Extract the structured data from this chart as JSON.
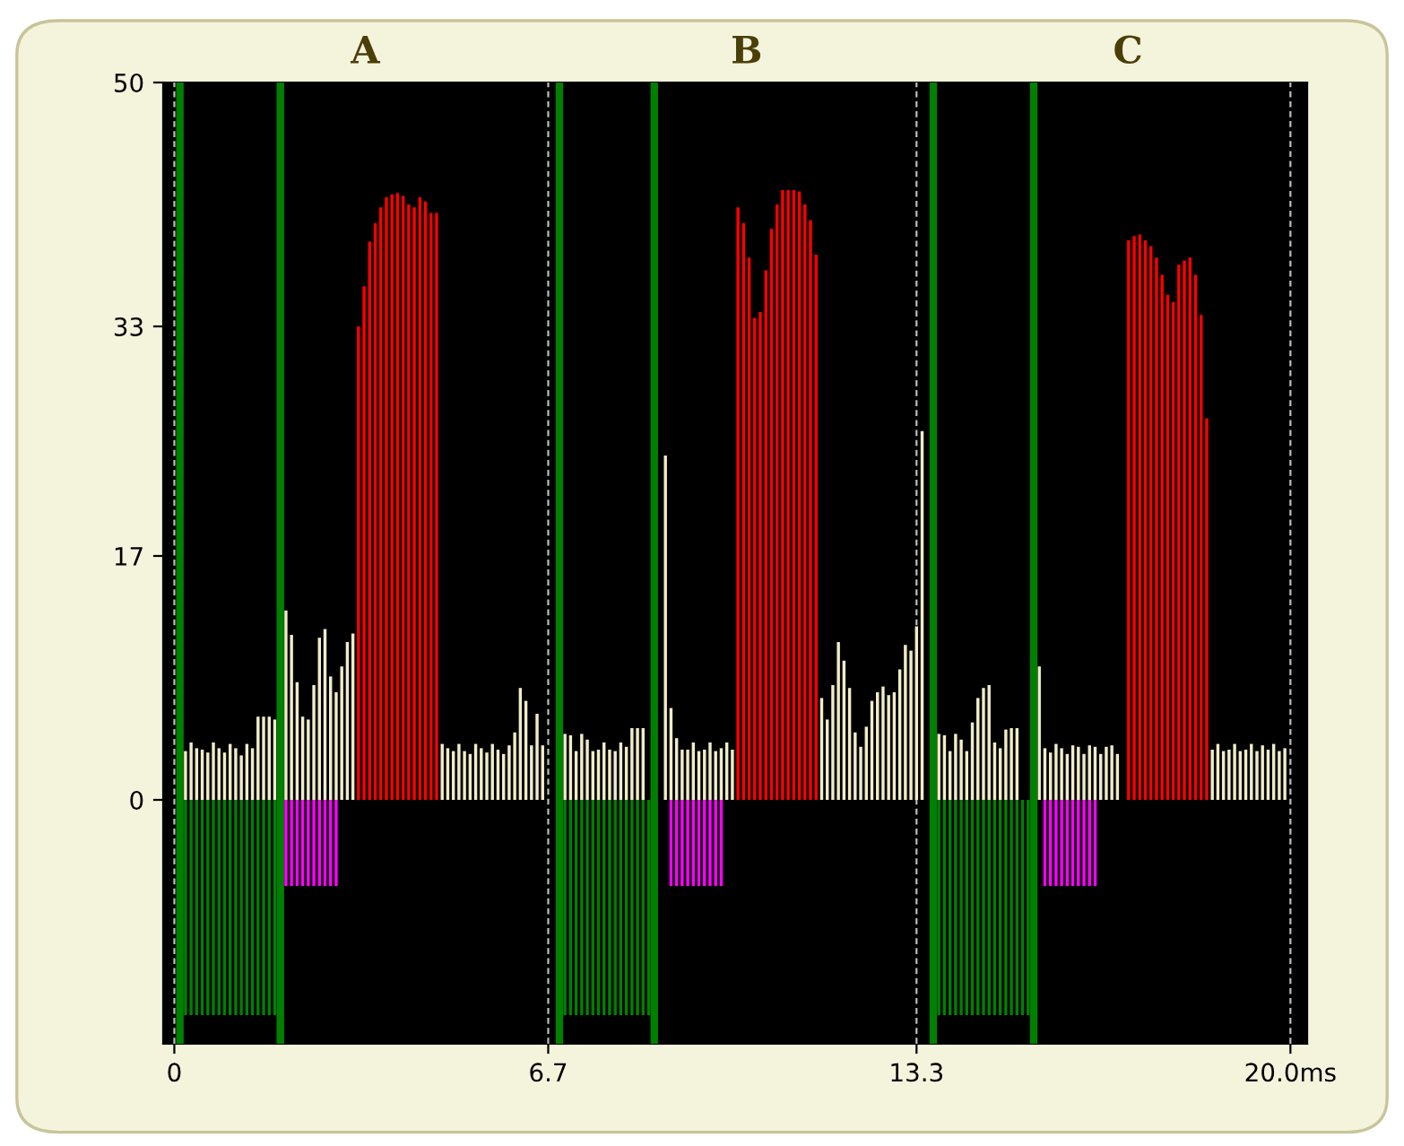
{
  "chart_data": {
    "type": "bar",
    "xlim": [
      -0.2,
      20.3
    ],
    "ylim": [
      -17,
      50
    ],
    "xticks": [
      0,
      6.7,
      13.3,
      {
        "value": 20.0,
        "label": "20.0ms"
      }
    ],
    "yticks": [
      50,
      33,
      17,
      0
    ],
    "grid": "x",
    "legend": false,
    "annotations": [
      "A",
      "B",
      "C"
    ],
    "ref_lines": [
      {
        "axis": "x",
        "value": 0.1,
        "label": null,
        "color": "#008000"
      },
      {
        "axis": "x",
        "value": 1.9,
        "label": null,
        "color": "#008000"
      },
      {
        "axis": "x",
        "value": 6.9,
        "label": null,
        "color": "#008000"
      },
      {
        "axis": "x",
        "value": 8.6,
        "label": null,
        "color": "#008000"
      },
      {
        "axis": "x",
        "value": 13.6,
        "label": null,
        "color": "#008000"
      },
      {
        "axis": "x",
        "value": 15.4,
        "label": null,
        "color": "#008000"
      }
    ],
    "series": [
      {
        "color": "#f0ecc8",
        "x": [
          0.2,
          0.3,
          0.4,
          0.5,
          0.6,
          0.7,
          0.8,
          0.9,
          1.0,
          1.1,
          1.2,
          1.3,
          1.4,
          1.5,
          1.6,
          1.7,
          1.8,
          2.0,
          2.1,
          2.2,
          2.3,
          2.4,
          2.5,
          2.6,
          2.7,
          2.8,
          2.9,
          3.0,
          3.1,
          3.2,
          4.8,
          4.9,
          5.0,
          5.1,
          5.2,
          5.3,
          5.4,
          5.5,
          5.6,
          5.7,
          5.8,
          5.9,
          6.0,
          6.1,
          6.2,
          6.3,
          6.4,
          6.5,
          6.6,
          7.0,
          7.1,
          7.2,
          7.3,
          7.4,
          7.5,
          7.6,
          7.7,
          7.8,
          7.9,
          8.0,
          8.1,
          8.2,
          8.3,
          8.4,
          8.8,
          8.9,
          9.0,
          9.1,
          9.2,
          9.3,
          9.4,
          9.5,
          9.6,
          9.7,
          9.8,
          9.9,
          10.0,
          11.6,
          11.7,
          11.8,
          11.9,
          12.0,
          12.1,
          12.2,
          12.3,
          12.4,
          12.5,
          12.6,
          12.7,
          12.8,
          12.9,
          13.0,
          13.1,
          13.2,
          13.3,
          13.4,
          13.7,
          13.8,
          13.9,
          14.0,
          14.1,
          14.2,
          14.3,
          14.4,
          14.5,
          14.6,
          14.7,
          14.8,
          14.9,
          15.0,
          15.1,
          15.5,
          15.6,
          15.7,
          15.8,
          15.9,
          16.0,
          16.1,
          16.2,
          16.3,
          16.4,
          16.5,
          16.6,
          16.7,
          16.8,
          16.9,
          18.6,
          18.7,
          18.8,
          18.9,
          19.0,
          19.1,
          19.2,
          19.3,
          19.4,
          19.5,
          19.6,
          19.7,
          19.8,
          19.9
        ],
        "values": [
          3.4,
          4,
          3.6,
          3.5,
          3.3,
          4,
          3.6,
          3.3,
          3.9,
          3.6,
          3.1,
          3.9,
          3.6,
          5.8,
          5.8,
          5.8,
          5.6,
          13.2,
          11.5,
          8.2,
          5.8,
          5.6,
          8,
          11.3,
          11.9,
          8.6,
          7.5,
          9.3,
          11,
          11.6,
          3.9,
          3.6,
          3.4,
          3.9,
          3.4,
          3.2,
          3.9,
          3.6,
          3.3,
          3.9,
          3.5,
          3.2,
          3.8,
          4.7,
          7.8,
          6.9,
          3.8,
          6.0,
          3.8,
          4.6,
          4.5,
          3.4,
          4.6,
          4.2,
          3.4,
          3.5,
          4,
          3.5,
          3.4,
          4,
          3.7,
          5,
          5,
          5,
          24,
          6.4,
          4.3,
          3.5,
          3.5,
          4,
          3.4,
          3.5,
          4,
          3.4,
          3.6,
          4,
          3.5,
          7.1,
          5.6,
          8,
          11,
          9.7,
          7.8,
          4.7,
          3.7,
          5.1,
          6.9,
          7.5,
          7.9,
          7.3,
          7.5,
          9.1,
          10.8,
          10.4,
          12.1,
          25.7,
          4.6,
          4.5,
          3.4,
          4.6,
          4.2,
          3.4,
          5.4,
          7.1,
          7.8,
          8,
          4,
          3.6,
          4.9,
          5,
          5,
          9.3,
          3.6,
          3.3,
          3.9,
          3.6,
          3.2,
          3.8,
          3.7,
          3.2,
          3.8,
          3.7,
          3.2,
          3.7,
          3.8,
          3.2,
          3.5,
          3.9,
          3.4,
          3.5,
          3.9,
          3.4,
          3.5,
          3.9,
          3.4,
          3.8,
          3.5,
          3.9,
          3.4,
          3.6
        ]
      },
      {
        "color": "#ff0000",
        "x": [
          3.3,
          3.4,
          3.5,
          3.6,
          3.7,
          3.8,
          3.9,
          4.0,
          4.1,
          4.2,
          4.3,
          4.4,
          4.5,
          4.6,
          4.7,
          10.1,
          10.2,
          10.3,
          10.4,
          10.5,
          10.6,
          10.7,
          10.8,
          10.9,
          11.0,
          11.1,
          11.2,
          11.3,
          11.4,
          11.5,
          17.1,
          17.2,
          17.3,
          17.4,
          17.5,
          17.6,
          17.7,
          17.8,
          17.9,
          18.0,
          18.1,
          18.2,
          18.3,
          18.4,
          18.5
        ],
        "values": [
          33,
          35.8,
          38.9,
          40.2,
          41.3,
          42,
          42.2,
          42.3,
          42.1,
          41.5,
          41.3,
          42,
          41.7,
          40.9,
          40.9,
          41.3,
          40.2,
          37.8,
          33.6,
          34,
          36.9,
          39.8,
          41.5,
          42.5,
          42.5,
          42.5,
          42.4,
          41.5,
          40.4,
          38,
          39,
          39.3,
          39.4,
          39,
          38.6,
          37.8,
          36.6,
          35.2,
          34.7,
          37.3,
          37.6,
          37.8,
          36.6,
          33.8,
          26.6
        ]
      },
      {
        "color": "#008000",
        "x": [
          0.2,
          0.3,
          0.4,
          0.5,
          0.6,
          0.7,
          0.8,
          0.9,
          1.0,
          1.1,
          1.2,
          1.3,
          1.4,
          1.5,
          1.6,
          1.7,
          1.8,
          7.0,
          7.1,
          7.2,
          7.3,
          7.4,
          7.5,
          7.6,
          7.7,
          7.8,
          7.9,
          8.0,
          8.1,
          8.2,
          8.3,
          8.4,
          8.5,
          13.7,
          13.8,
          13.9,
          14.0,
          14.1,
          14.2,
          14.3,
          14.4,
          14.5,
          14.6,
          14.7,
          14.8,
          14.9,
          15.0,
          15.1,
          15.2,
          15.3
        ],
        "values": [
          -15,
          -15,
          -15,
          -15,
          -15,
          -15,
          -15,
          -15,
          -15,
          -15,
          -15,
          -15,
          -15,
          -15,
          -15,
          -15,
          -15,
          -15,
          -15,
          -15,
          -15,
          -15,
          -15,
          -15,
          -15,
          -15,
          -15,
          -15,
          -15,
          -15,
          -15,
          -15,
          -15,
          -15,
          -15,
          -15,
          -15,
          -15,
          -15,
          -15,
          -15,
          -15,
          -15,
          -15,
          -15,
          -15,
          -15,
          -15,
          -15,
          -15
        ]
      },
      {
        "color": "#ff00ff",
        "x": [
          2.0,
          2.1,
          2.2,
          2.3,
          2.4,
          2.5,
          2.6,
          2.7,
          2.8,
          2.9,
          8.9,
          9.0,
          9.1,
          9.2,
          9.3,
          9.4,
          9.5,
          9.6,
          9.7,
          9.8,
          15.6,
          15.7,
          15.8,
          15.9,
          16.0,
          16.1,
          16.2,
          16.3,
          16.4,
          16.5
        ],
        "values": [
          -6,
          -6,
          -6,
          -6,
          -6,
          -6,
          -6,
          -6,
          -6,
          -6,
          -6,
          -6,
          -6,
          -6,
          -6,
          -6,
          -6,
          -6,
          -6,
          -6,
          -6,
          -6,
          -6,
          -6,
          -6,
          -6,
          -6,
          -6,
          -6,
          -6
        ]
      }
    ]
  }
}
